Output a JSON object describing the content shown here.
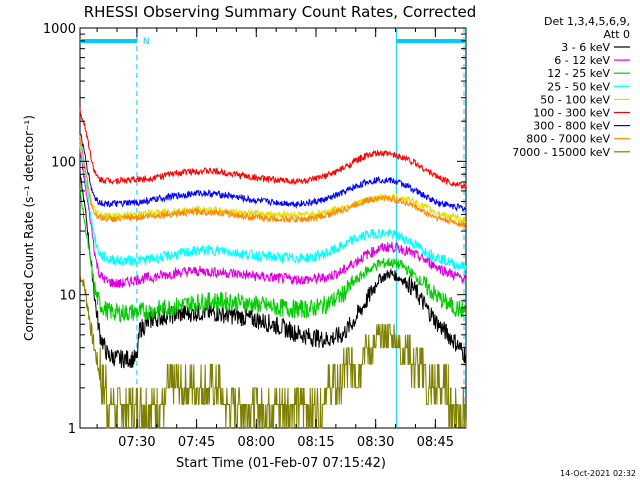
{
  "chart_data": {
    "type": "line",
    "title": "RHESSI Observing Summary Count Rates, Corrected",
    "xlabel": "Start Time (01-Feb-07 07:15:42)",
    "ylabel": "Corrected Count Rate (s⁻¹ detector⁻¹)",
    "yscale": "log",
    "ylim": [
      1,
      1000
    ],
    "xlim_minutes": [
      0,
      97
    ],
    "x_ticks": [
      {
        "label": "07:30",
        "min": 14.3
      },
      {
        "label": "07:45",
        "min": 29.3
      },
      {
        "label": "08:00",
        "min": 44.3
      },
      {
        "label": "08:15",
        "min": 59.3
      },
      {
        "label": "08:30",
        "min": 74.3
      },
      {
        "label": "08:45",
        "min": 89.3
      }
    ],
    "y_ticks": [
      {
        "label": "1",
        "value": 1
      },
      {
        "label": "10",
        "value": 10
      },
      {
        "label": "100",
        "value": 100
      },
      {
        "label": "1000",
        "value": 1000
      }
    ],
    "legend_header": [
      "Det 1,3,4,5,6,9,",
      "Att 0"
    ],
    "legend_position": "right",
    "series": [
      {
        "name": "3 - 6 keV",
        "color": "#000000",
        "x": [
          0,
          1.5,
          3,
          4,
          5,
          7,
          10,
          14.3,
          15,
          18,
          22,
          26,
          30,
          34,
          38,
          42,
          46,
          50,
          54,
          58,
          62,
          66,
          69,
          72,
          75,
          78,
          81,
          84,
          87,
          90,
          94,
          97
        ],
        "y": [
          80,
          40,
          15,
          8,
          5,
          3.5,
          3.3,
          3.3,
          5.5,
          6.5,
          7,
          7.2,
          7.4,
          7.3,
          7,
          6.7,
          6.3,
          5.8,
          5.2,
          4.8,
          4.6,
          5,
          6.5,
          9,
          13,
          14.5,
          13,
          11,
          8,
          6,
          4.5,
          3.5
        ]
      },
      {
        "name": "6 - 12 keV",
        "color": "#dd00dd",
        "x": [
          0,
          1.5,
          3,
          4,
          5,
          7,
          10,
          14.3,
          18,
          22,
          26,
          30,
          34,
          38,
          42,
          46,
          50,
          54,
          58,
          62,
          66,
          69,
          72,
          75,
          78,
          81,
          84,
          87,
          90,
          94,
          97
        ],
        "y": [
          120,
          60,
          30,
          18,
          14,
          12.5,
          12,
          13,
          13.5,
          14.2,
          14.8,
          15,
          14.8,
          14.5,
          14,
          13.6,
          13.3,
          13,
          13,
          13.5,
          15,
          17.5,
          20,
          22,
          23,
          22,
          20,
          18,
          16,
          14,
          13
        ]
      },
      {
        "name": "12 - 25 keV",
        "color": "#00cc00",
        "x": [
          0,
          1.5,
          3,
          4,
          5,
          7,
          10,
          14.3,
          18,
          22,
          26,
          30,
          34,
          38,
          42,
          46,
          50,
          54,
          58,
          62,
          66,
          69,
          72,
          75,
          78,
          81,
          84,
          87,
          90,
          94,
          97
        ],
        "y": [
          60,
          30,
          15,
          10,
          8.5,
          7.5,
          7.3,
          7.4,
          7.6,
          8,
          8.4,
          8.8,
          9,
          8.9,
          8.6,
          8.3,
          8,
          7.8,
          7.8,
          8.5,
          10,
          12.5,
          15,
          17,
          17.5,
          16.5,
          14,
          11.5,
          9.5,
          8,
          7.5
        ]
      },
      {
        "name": "25 - 50 keV",
        "color": "#00ffff",
        "x": [
          0,
          1.5,
          3,
          4,
          5,
          7,
          10,
          14.3,
          18,
          22,
          26,
          30,
          34,
          38,
          42,
          46,
          50,
          54,
          58,
          62,
          66,
          69,
          72,
          75,
          78,
          81,
          84,
          87,
          90,
          94,
          97
        ],
        "y": [
          130,
          70,
          35,
          24,
          20,
          18.5,
          18,
          18,
          18.5,
          19.5,
          20.5,
          21.5,
          21.5,
          21,
          20,
          19.5,
          19,
          18.8,
          19,
          20.5,
          23,
          26,
          28,
          29,
          28.5,
          27,
          24,
          21,
          19,
          17,
          16
        ]
      },
      {
        "name": "50 - 100 keV",
        "color": "#e0e000",
        "x": [
          0,
          1.5,
          3,
          4,
          5,
          7,
          10,
          14.3,
          18,
          22,
          26,
          30,
          34,
          38,
          42,
          46,
          50,
          54,
          58,
          62,
          66,
          69,
          72,
          75,
          78,
          81,
          84,
          87,
          90,
          94,
          97
        ],
        "y": [
          140,
          80,
          48,
          42,
          40,
          39,
          39,
          40,
          41,
          42,
          43,
          43.5,
          43,
          42,
          41,
          40.5,
          40,
          39.8,
          40,
          42,
          45,
          48,
          51,
          53,
          54,
          53,
          50,
          45,
          41,
          38,
          36
        ]
      },
      {
        "name": "100 - 300 keV",
        "color": "#ff0000",
        "x": [
          0,
          1.5,
          3,
          4,
          5,
          7,
          10,
          14.3,
          18,
          22,
          26,
          30,
          34,
          38,
          42,
          46,
          50,
          54,
          58,
          62,
          66,
          69,
          72,
          75,
          78,
          81,
          84,
          87,
          90,
          94,
          97
        ],
        "y": [
          240,
          170,
          100,
          78,
          73,
          72,
          72,
          73,
          75,
          79,
          83,
          85,
          84,
          81,
          77,
          74,
          72,
          71,
          72,
          78,
          88,
          100,
          110,
          115,
          113,
          108,
          98,
          86,
          76,
          68,
          64
        ]
      },
      {
        "name": "300 - 800 keV",
        "color": "#0000ff",
        "x": [
          0,
          1.5,
          3,
          4,
          5,
          7,
          10,
          14.3,
          18,
          22,
          26,
          30,
          34,
          38,
          42,
          46,
          50,
          54,
          58,
          62,
          66,
          69,
          72,
          75,
          78,
          81,
          84,
          87,
          90,
          94,
          97
        ],
        "y": [
          170,
          100,
          60,
          52,
          49,
          48,
          48,
          49,
          51,
          54,
          56,
          58,
          57,
          55,
          52,
          50,
          49,
          48,
          49,
          52,
          58,
          64,
          70,
          73,
          72,
          68,
          61,
          54,
          49,
          46,
          44
        ]
      },
      {
        "name": "800 - 7000 keV",
        "color": "#ff8800",
        "x": [
          0,
          1.5,
          3,
          4,
          5,
          7,
          10,
          14.3,
          18,
          22,
          26,
          30,
          34,
          38,
          42,
          46,
          50,
          54,
          58,
          62,
          66,
          69,
          72,
          75,
          78,
          81,
          84,
          87,
          90,
          94,
          97
        ],
        "y": [
          150,
          80,
          45,
          40,
          38,
          37,
          37,
          38,
          39,
          40,
          41,
          42,
          41.5,
          40,
          38.5,
          37.5,
          37,
          36.5,
          37,
          39.5,
          43,
          47,
          51,
          53,
          52.5,
          50,
          46,
          41,
          37.5,
          35,
          33
        ]
      },
      {
        "name": "7000 - 15000 keV",
        "color": "#808000",
        "x": [
          0,
          1,
          2,
          3,
          4,
          5,
          7,
          10,
          14.3,
          17,
          20,
          25,
          30,
          35,
          38,
          42,
          46,
          50,
          54,
          58,
          62,
          66,
          69,
          72,
          75,
          78,
          81,
          84,
          87,
          90,
          94,
          97
        ],
        "y": [
          14,
          12,
          8,
          5,
          3.5,
          2.5,
          1.6,
          1.6,
          1.6,
          1.7,
          1.7,
          1.8,
          1.8,
          1.8,
          1.5,
          1.3,
          1.4,
          1.5,
          1.5,
          1.5,
          1.8,
          2.4,
          3.1,
          3.8,
          4.6,
          4.8,
          4.2,
          3.2,
          2.4,
          2,
          1.6,
          1.3
        ]
      }
    ],
    "attenuator_bars": [
      {
        "x1": 0,
        "x2": 14.3,
        "label": "N"
      },
      {
        "x1": 79.5,
        "x2": 97,
        "label": ""
      }
    ],
    "vertical_markers": [
      {
        "x": 14.3,
        "style": "dashed"
      },
      {
        "x": 79.5,
        "style": "solid"
      },
      {
        "x": 96.5,
        "style": "dashed"
      }
    ],
    "colors": {
      "cyan": "#00ccff"
    }
  },
  "footer": {
    "timestamp": "14-Oct-2021 02:32"
  }
}
